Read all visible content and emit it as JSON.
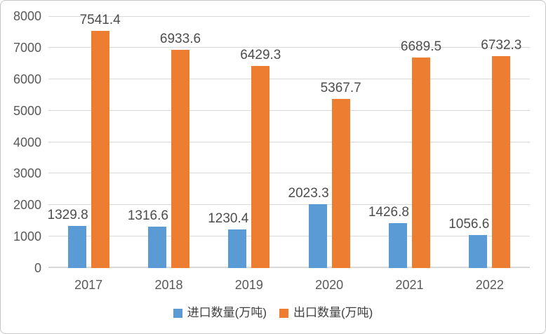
{
  "chart_data": {
    "type": "bar",
    "categories": [
      "2017",
      "2018",
      "2019",
      "2020",
      "2021",
      "2022"
    ],
    "series": [
      {
        "name": "进口数量(万吨)",
        "color": "#5B9BD5",
        "values": [
          1329.8,
          1316.6,
          1230.4,
          2023.3,
          1426.8,
          1056.6
        ]
      },
      {
        "name": "出口数量(万吨)",
        "color": "#ED7D31",
        "values": [
          7541.4,
          6933.6,
          6429.3,
          5367.7,
          6689.5,
          6732.3
        ]
      }
    ],
    "title": "",
    "xlabel": "",
    "ylabel": "",
    "ylim": [
      0,
      8000
    ],
    "ytick_step": 1000,
    "ytick_labels": [
      "0",
      "1000",
      "2000",
      "3000",
      "4000",
      "5000",
      "6000",
      "7000",
      "8000"
    ],
    "grid": true,
    "legend_position": "bottom",
    "data_labels": "outside-end"
  },
  "colors": {
    "import_bar": "#5B9BD5",
    "export_bar": "#ED7D31",
    "gridline": "#D9D9D9",
    "axis_text": "#595959",
    "data_label_text": "#4D4D4D",
    "legend_text": "#404040",
    "background": "#FFFFFF",
    "border": "#C6C6C6"
  }
}
